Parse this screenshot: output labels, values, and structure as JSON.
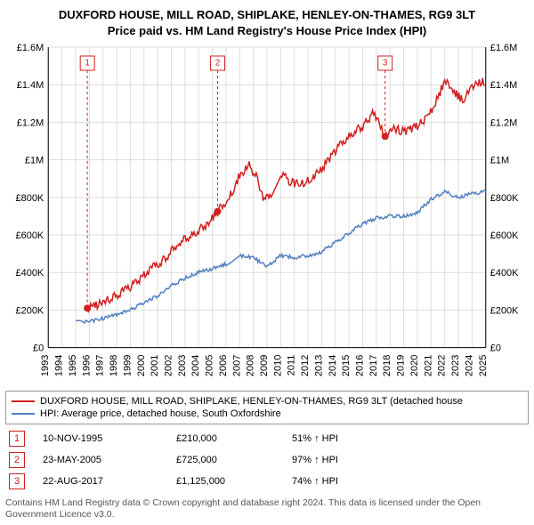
{
  "title_line1": "DUXFORD HOUSE, MILL ROAD, SHIPLAKE, HENLEY-ON-THAMES, RG9 3LT",
  "title_line2": "Price paid vs. HM Land Registry's House Price Index (HPI)",
  "chart": {
    "type": "line",
    "background_color": "#ffffff",
    "grid_color": "#dddddd",
    "axis_color": "#000000",
    "tick_fontsize": 11,
    "x": {
      "years": [
        1993,
        1994,
        1995,
        1996,
        1997,
        1998,
        1999,
        2000,
        2001,
        2002,
        2003,
        2004,
        2005,
        2006,
        2007,
        2008,
        2009,
        2010,
        2011,
        2012,
        2013,
        2014,
        2015,
        2016,
        2017,
        2018,
        2019,
        2020,
        2021,
        2022,
        2023,
        2024,
        2025
      ],
      "rotation": -90
    },
    "y_left": {
      "lim": [
        0,
        1600000
      ],
      "tick_step": 200000,
      "labels": [
        "£0",
        "£200K",
        "£400K",
        "£600K",
        "£800K",
        "£1M",
        "£1.2M",
        "£1.4M",
        "£1.6M"
      ]
    },
    "y_right": {
      "lim": [
        0,
        1600000
      ],
      "tick_step": 200000,
      "labels": [
        "£0",
        "£200K",
        "£400K",
        "£600K",
        "£800K",
        "£1M",
        "£1.2M",
        "£1.4M",
        "£1.6M"
      ]
    },
    "series": {
      "property": {
        "color": "#d02020",
        "line_width": 1.5,
        "points": [
          [
            1995.86,
            210000
          ],
          [
            1996.5,
            225000
          ],
          [
            1997.5,
            260000
          ],
          [
            1998.5,
            300000
          ],
          [
            1999.5,
            350000
          ],
          [
            2000.5,
            420000
          ],
          [
            2001.5,
            470000
          ],
          [
            2002.5,
            560000
          ],
          [
            2003.5,
            600000
          ],
          [
            2004.5,
            650000
          ],
          [
            2005.39,
            725000
          ],
          [
            2006.0,
            780000
          ],
          [
            2006.5,
            830000
          ],
          [
            2007.0,
            920000
          ],
          [
            2007.7,
            970000
          ],
          [
            2008.3,
            900000
          ],
          [
            2008.8,
            780000
          ],
          [
            2009.3,
            820000
          ],
          [
            2010.0,
            930000
          ],
          [
            2010.7,
            880000
          ],
          [
            2011.5,
            870000
          ],
          [
            2012.3,
            900000
          ],
          [
            2013.0,
            950000
          ],
          [
            2014.0,
            1050000
          ],
          [
            2015.0,
            1130000
          ],
          [
            2016.0,
            1180000
          ],
          [
            2016.8,
            1250000
          ],
          [
            2017.64,
            1125000
          ],
          [
            2018.2,
            1170000
          ],
          [
            2019.0,
            1150000
          ],
          [
            2020.0,
            1180000
          ],
          [
            2020.8,
            1230000
          ],
          [
            2021.5,
            1330000
          ],
          [
            2022.0,
            1420000
          ],
          [
            2022.7,
            1360000
          ],
          [
            2023.3,
            1320000
          ],
          [
            2024.0,
            1380000
          ],
          [
            2024.7,
            1420000
          ],
          [
            2025.0,
            1400000
          ]
        ]
      },
      "hpi": {
        "color": "#5080c0",
        "line_width": 1.5,
        "points": [
          [
            1995.0,
            135000
          ],
          [
            1996.0,
            140000
          ],
          [
            1997.0,
            155000
          ],
          [
            1998.0,
            175000
          ],
          [
            1999.0,
            200000
          ],
          [
            2000.0,
            240000
          ],
          [
            2001.0,
            275000
          ],
          [
            2002.0,
            330000
          ],
          [
            2003.0,
            370000
          ],
          [
            2004.0,
            400000
          ],
          [
            2005.0,
            420000
          ],
          [
            2006.0,
            445000
          ],
          [
            2007.0,
            490000
          ],
          [
            2008.0,
            480000
          ],
          [
            2009.0,
            430000
          ],
          [
            2010.0,
            490000
          ],
          [
            2011.0,
            480000
          ],
          [
            2012.0,
            490000
          ],
          [
            2013.0,
            510000
          ],
          [
            2014.0,
            560000
          ],
          [
            2015.0,
            610000
          ],
          [
            2016.0,
            660000
          ],
          [
            2017.0,
            690000
          ],
          [
            2018.0,
            700000
          ],
          [
            2019.0,
            700000
          ],
          [
            2020.0,
            720000
          ],
          [
            2021.0,
            790000
          ],
          [
            2022.0,
            830000
          ],
          [
            2023.0,
            800000
          ],
          [
            2024.0,
            820000
          ],
          [
            2025.0,
            830000
          ]
        ]
      }
    },
    "sale_markers": [
      {
        "n": "1",
        "year": 1995.86,
        "price": 210000
      },
      {
        "n": "2",
        "year": 2005.39,
        "price": 725000
      },
      {
        "n": "3",
        "year": 2017.64,
        "price": 1125000
      }
    ],
    "marker_box_color": "#d02020",
    "marker_dot_color": "#d02020"
  },
  "legend": {
    "items": [
      {
        "color": "#d02020",
        "label": "DUXFORD HOUSE, MILL ROAD, SHIPLAKE, HENLEY-ON-THAMES, RG9 3LT (detached house"
      },
      {
        "color": "#5080c0",
        "label": "HPI: Average price, detached house, South Oxfordshire"
      }
    ]
  },
  "sales_table": {
    "rows": [
      {
        "n": "1",
        "date": "10-NOV-1995",
        "price": "£210,000",
        "pct": "51% ↑ HPI"
      },
      {
        "n": "2",
        "date": "23-MAY-2005",
        "price": "£725,000",
        "pct": "97% ↑ HPI"
      },
      {
        "n": "3",
        "date": "22-AUG-2017",
        "price": "£1,125,000",
        "pct": "74% ↑ HPI"
      }
    ]
  },
  "footnote": "Contains HM Land Registry data © Crown copyright and database right 2024. This data is licensed under the Open Government Licence v3.0.",
  "colors": {
    "marker_border": "#d02020",
    "text": "#000000",
    "footnote": "#555555"
  }
}
